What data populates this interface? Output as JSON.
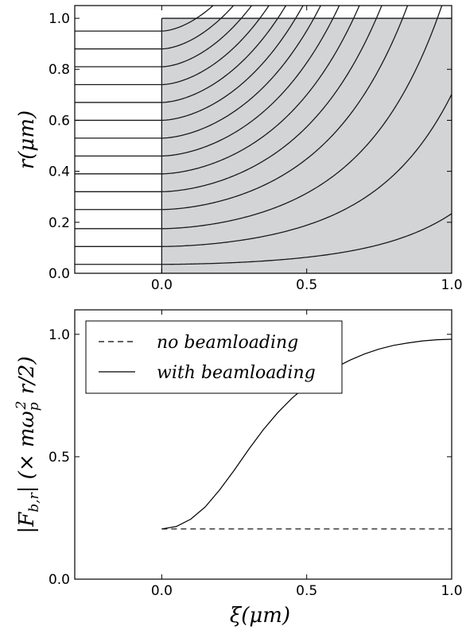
{
  "chart_data": [
    {
      "type": "line",
      "panel": "top",
      "ylabel": "r(μm)",
      "xlabel": "",
      "xlim": [
        -0.3,
        1.0
      ],
      "ylim": [
        0.0,
        1.05
      ],
      "xticks": [
        "0.0",
        "0.5",
        "1.0"
      ],
      "yticks": [
        "0.0",
        "0.2",
        "0.4",
        "0.6",
        "0.8",
        "1.0"
      ],
      "shaded_region": {
        "x": [
          0.0,
          1.0
        ],
        "y": [
          0.0,
          1.0
        ],
        "color": "#d3d4d6"
      },
      "trajectory_start_radii": [
        0.035,
        0.105,
        0.175,
        0.25,
        0.32,
        0.39,
        0.46,
        0.53,
        0.6,
        0.67,
        0.74,
        0.81,
        0.88,
        0.95
      ],
      "trajectory_model": "r(ξ) = r0 · exp(k · ξ^1.7), k = 1.9",
      "series_color": "#1a1a1a"
    },
    {
      "type": "line",
      "panel": "bottom",
      "ylabel": "|F_b,r| (× mω_p² r/2)",
      "xlabel": "ξ(μm)",
      "xlim": [
        -0.3,
        1.0
      ],
      "ylim": [
        0.0,
        1.1
      ],
      "xticks": [
        "0.0",
        "0.5",
        "1.0"
      ],
      "yticks": [
        "0.0",
        "0.5",
        "1.0"
      ],
      "legend_placement": "top-left",
      "series": [
        {
          "name": "no beamloading",
          "style": "dashed",
          "x": [
            0.0,
            1.0
          ],
          "y": [
            0.205,
            0.205
          ]
        },
        {
          "name": "with beamloading",
          "style": "solid",
          "x": [
            0.0,
            0.05,
            0.1,
            0.15,
            0.2,
            0.25,
            0.3,
            0.35,
            0.4,
            0.45,
            0.5,
            0.55,
            0.6,
            0.65,
            0.7,
            0.75,
            0.8,
            0.85,
            0.9,
            0.95,
            1.0
          ],
          "y": [
            0.205,
            0.215,
            0.245,
            0.295,
            0.365,
            0.445,
            0.53,
            0.61,
            0.68,
            0.74,
            0.79,
            0.83,
            0.865,
            0.895,
            0.92,
            0.94,
            0.955,
            0.965,
            0.973,
            0.978,
            0.98
          ]
        }
      ]
    }
  ]
}
